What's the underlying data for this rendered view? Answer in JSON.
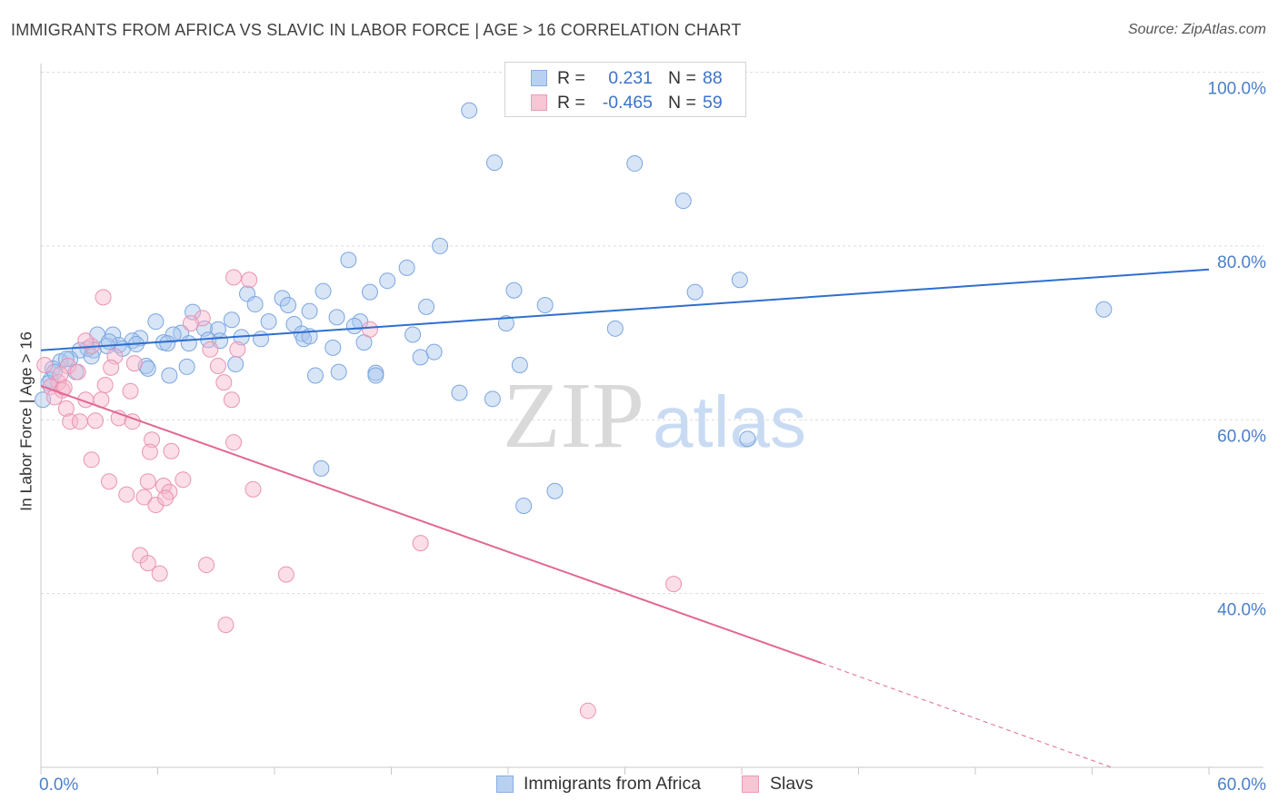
{
  "source": "Source: ZipAtlas.com",
  "watermark": {
    "zip": "ZIP",
    "atlas": "atlas"
  },
  "legend_top": [
    {
      "r_label": "R =",
      "r_value": "0.231",
      "n_label": "N =",
      "n_value": "88"
    },
    {
      "r_label": "R =",
      "r_value": "-0.465",
      "n_label": "N =",
      "n_value": "59"
    }
  ],
  "colors": {
    "tick_label": "#4a7fcb",
    "grid": "#dcdcdc",
    "axis": "#c8c8c8",
    "watermark_zip": "#d9d9d9",
    "watermark_atlas": "#c9dbf3"
  },
  "chart_data": {
    "type": "scatter",
    "title": "IMMIGRANTS FROM AFRICA VS SLAVIC IN LABOR FORCE | AGE > 16 CORRELATION CHART",
    "ylabel": "In Labor Force | Age > 16",
    "xlim": [
      0,
      62.8
    ],
    "ylim": [
      20,
      101
    ],
    "x_ticks": [
      0,
      6,
      12,
      18,
      24,
      30,
      36,
      42,
      48,
      54,
      60
    ],
    "x_tick_labels": [
      {
        "value": 0,
        "label": "0.0%"
      },
      {
        "value": 60,
        "label": "60.0%"
      }
    ],
    "y_ticks": [
      {
        "value": 100,
        "label": "100.0%"
      },
      {
        "value": 80,
        "label": "80.0%"
      },
      {
        "value": 60,
        "label": "60.0%"
      },
      {
        "value": 40,
        "label": "40.0%"
      }
    ],
    "grid": true,
    "series": [
      {
        "name": "Immigrants from Africa",
        "fill": "#a8c6ee",
        "stroke": "#7ba6e0",
        "line_color": "#2e6fcf",
        "points": [
          [
            22.0,
            95.6
          ],
          [
            23.3,
            89.6
          ],
          [
            30.5,
            89.5
          ],
          [
            33.0,
            85.2
          ],
          [
            20.5,
            80.0
          ],
          [
            15.8,
            78.4
          ],
          [
            18.8,
            77.5
          ],
          [
            17.8,
            76.0
          ],
          [
            35.9,
            76.1
          ],
          [
            33.6,
            74.7
          ],
          [
            24.3,
            74.9
          ],
          [
            14.5,
            74.8
          ],
          [
            16.9,
            74.7
          ],
          [
            10.6,
            74.5
          ],
          [
            12.4,
            74.0
          ],
          [
            11.0,
            73.3
          ],
          [
            12.7,
            73.2
          ],
          [
            25.9,
            73.2
          ],
          [
            19.8,
            73.0
          ],
          [
            54.6,
            72.7
          ],
          [
            7.8,
            72.4
          ],
          [
            13.8,
            72.5
          ],
          [
            15.2,
            71.8
          ],
          [
            5.9,
            71.3
          ],
          [
            9.8,
            71.5
          ],
          [
            11.7,
            71.3
          ],
          [
            16.4,
            71.3
          ],
          [
            16.1,
            70.8
          ],
          [
            13.0,
            71.0
          ],
          [
            23.9,
            71.1
          ],
          [
            29.5,
            70.5
          ],
          [
            9.1,
            70.4
          ],
          [
            8.4,
            70.5
          ],
          [
            7.2,
            70.0
          ],
          [
            6.8,
            69.8
          ],
          [
            2.9,
            69.8
          ],
          [
            3.7,
            69.8
          ],
          [
            5.1,
            69.4
          ],
          [
            4.7,
            69.1
          ],
          [
            8.6,
            69.2
          ],
          [
            10.3,
            69.5
          ],
          [
            11.3,
            69.3
          ],
          [
            13.4,
            69.9
          ],
          [
            13.5,
            69.3
          ],
          [
            19.1,
            69.8
          ],
          [
            16.6,
            68.9
          ],
          [
            9.2,
            69.1
          ],
          [
            6.3,
            68.9
          ],
          [
            6.5,
            68.8
          ],
          [
            4.0,
            68.6
          ],
          [
            3.4,
            68.5
          ],
          [
            2.7,
            68.0
          ],
          [
            2.4,
            68.2
          ],
          [
            4.2,
            68.2
          ],
          [
            15.0,
            68.3
          ],
          [
            2.0,
            68.0
          ],
          [
            20.2,
            67.8
          ],
          [
            19.5,
            67.2
          ],
          [
            1.5,
            67.0
          ],
          [
            1.0,
            66.7
          ],
          [
            10.0,
            66.4
          ],
          [
            24.6,
            66.3
          ],
          [
            5.4,
            66.2
          ],
          [
            7.5,
            66.1
          ],
          [
            5.5,
            65.9
          ],
          [
            0.6,
            65.9
          ],
          [
            1.8,
            65.5
          ],
          [
            15.3,
            65.5
          ],
          [
            17.2,
            65.4
          ],
          [
            17.2,
            65.1
          ],
          [
            6.6,
            65.1
          ],
          [
            14.1,
            65.1
          ],
          [
            0.5,
            64.6
          ],
          [
            0.4,
            64.2
          ],
          [
            21.5,
            63.1
          ],
          [
            23.2,
            62.4
          ],
          [
            0.1,
            62.3
          ],
          [
            36.3,
            57.8
          ],
          [
            14.4,
            54.4
          ],
          [
            26.4,
            51.8
          ],
          [
            24.8,
            50.1
          ],
          [
            1.3,
            67.0
          ],
          [
            0.7,
            65.5
          ],
          [
            4.9,
            68.7
          ],
          [
            13.8,
            69.6
          ],
          [
            2.6,
            67.3
          ],
          [
            3.5,
            69.0
          ],
          [
            7.6,
            68.8
          ]
        ],
        "trend": {
          "solid": [
            [
              0,
              68.0
            ],
            [
              60,
              77.3
            ]
          ]
        }
      },
      {
        "name": "Slavs",
        "fill": "#f6b6cb",
        "stroke": "#ea93b2",
        "line_color": "#e06894",
        "points": [
          [
            9.9,
            76.4
          ],
          [
            10.7,
            76.1
          ],
          [
            3.2,
            74.1
          ],
          [
            8.3,
            71.7
          ],
          [
            7.7,
            71.1
          ],
          [
            16.9,
            70.4
          ],
          [
            10.1,
            68.1
          ],
          [
            8.7,
            68.1
          ],
          [
            3.8,
            67.3
          ],
          [
            4.8,
            66.5
          ],
          [
            2.6,
            68.5
          ],
          [
            1.4,
            66.2
          ],
          [
            1.9,
            65.5
          ],
          [
            0.9,
            64.3
          ],
          [
            0.5,
            63.8
          ],
          [
            9.4,
            64.3
          ],
          [
            3.3,
            64.0
          ],
          [
            4.6,
            63.3
          ],
          [
            1.1,
            63.4
          ],
          [
            0.7,
            62.6
          ],
          [
            2.3,
            62.3
          ],
          [
            3.1,
            62.3
          ],
          [
            9.8,
            62.3
          ],
          [
            1.3,
            61.3
          ],
          [
            1.5,
            59.8
          ],
          [
            2.8,
            59.9
          ],
          [
            2.0,
            59.8
          ],
          [
            4.0,
            60.2
          ],
          [
            4.7,
            59.8
          ],
          [
            1.2,
            63.7
          ],
          [
            5.7,
            57.7
          ],
          [
            9.9,
            57.4
          ],
          [
            5.6,
            56.3
          ],
          [
            6.7,
            56.4
          ],
          [
            2.6,
            55.4
          ],
          [
            3.5,
            52.9
          ],
          [
            5.5,
            52.9
          ],
          [
            7.3,
            53.1
          ],
          [
            6.3,
            52.4
          ],
          [
            10.9,
            52.0
          ],
          [
            4.4,
            51.4
          ],
          [
            6.6,
            51.7
          ],
          [
            5.3,
            51.1
          ],
          [
            5.9,
            50.2
          ],
          [
            6.4,
            51.0
          ],
          [
            19.5,
            45.8
          ],
          [
            5.1,
            44.4
          ],
          [
            5.5,
            43.5
          ],
          [
            8.5,
            43.3
          ],
          [
            6.1,
            42.3
          ],
          [
            12.6,
            42.2
          ],
          [
            32.5,
            41.1
          ],
          [
            9.5,
            36.4
          ],
          [
            28.1,
            26.5
          ],
          [
            0.2,
            66.3
          ],
          [
            1.0,
            65.2
          ],
          [
            3.6,
            66.0
          ],
          [
            2.3,
            69.1
          ],
          [
            9.1,
            66.2
          ]
        ],
        "trend": {
          "solid": [
            [
              0,
              63.9
            ],
            [
              40.1,
              32.0
            ]
          ],
          "dashed": [
            [
              40.1,
              32.0
            ],
            [
              55.0,
              20.0
            ]
          ]
        }
      }
    ]
  }
}
